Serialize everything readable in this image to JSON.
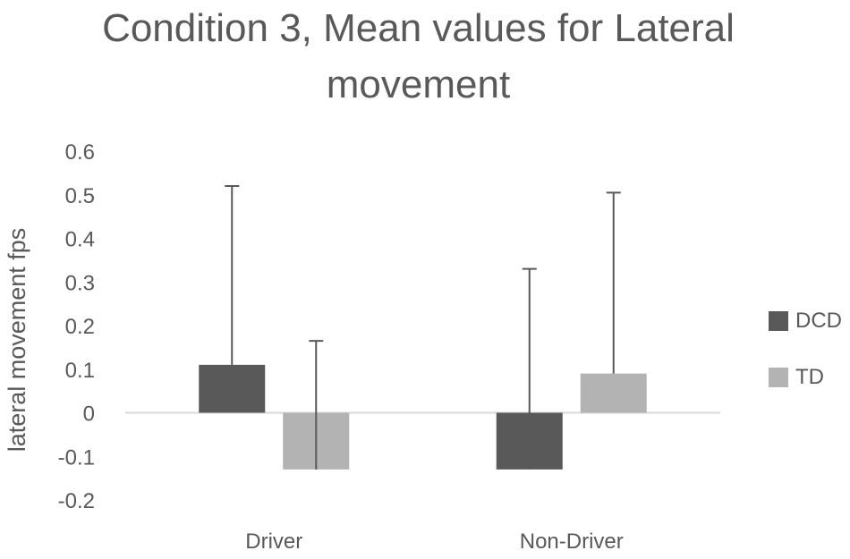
{
  "chart_data": {
    "type": "bar",
    "title_lines": [
      "Condition 3, Mean values for Lateral",
      "movement"
    ],
    "ylabel": "lateral movement fps",
    "xlabel": "",
    "categories": [
      "Driver",
      "Non-Driver"
    ],
    "ylim": [
      -0.2,
      0.6
    ],
    "yticks": [
      0.6,
      0.5,
      0.4,
      0.3,
      0.2,
      0.1,
      0,
      -0.1,
      -0.2
    ],
    "ytick_labels": [
      "0.6",
      "0.5",
      "0.4",
      "0.3",
      "0.2",
      "0.1",
      "0",
      "-0.1",
      "-0.2"
    ],
    "series": [
      {
        "name": "DCD",
        "color": "#595959",
        "values": [
          0.11,
          -0.13
        ],
        "error_plus": [
          0.41,
          0.46
        ]
      },
      {
        "name": "TD",
        "color": "#b3b3b3",
        "values": [
          -0.13,
          0.09
        ],
        "error_plus": [
          0.295,
          0.415
        ]
      }
    ],
    "legend_position": "right",
    "grid": false
  }
}
